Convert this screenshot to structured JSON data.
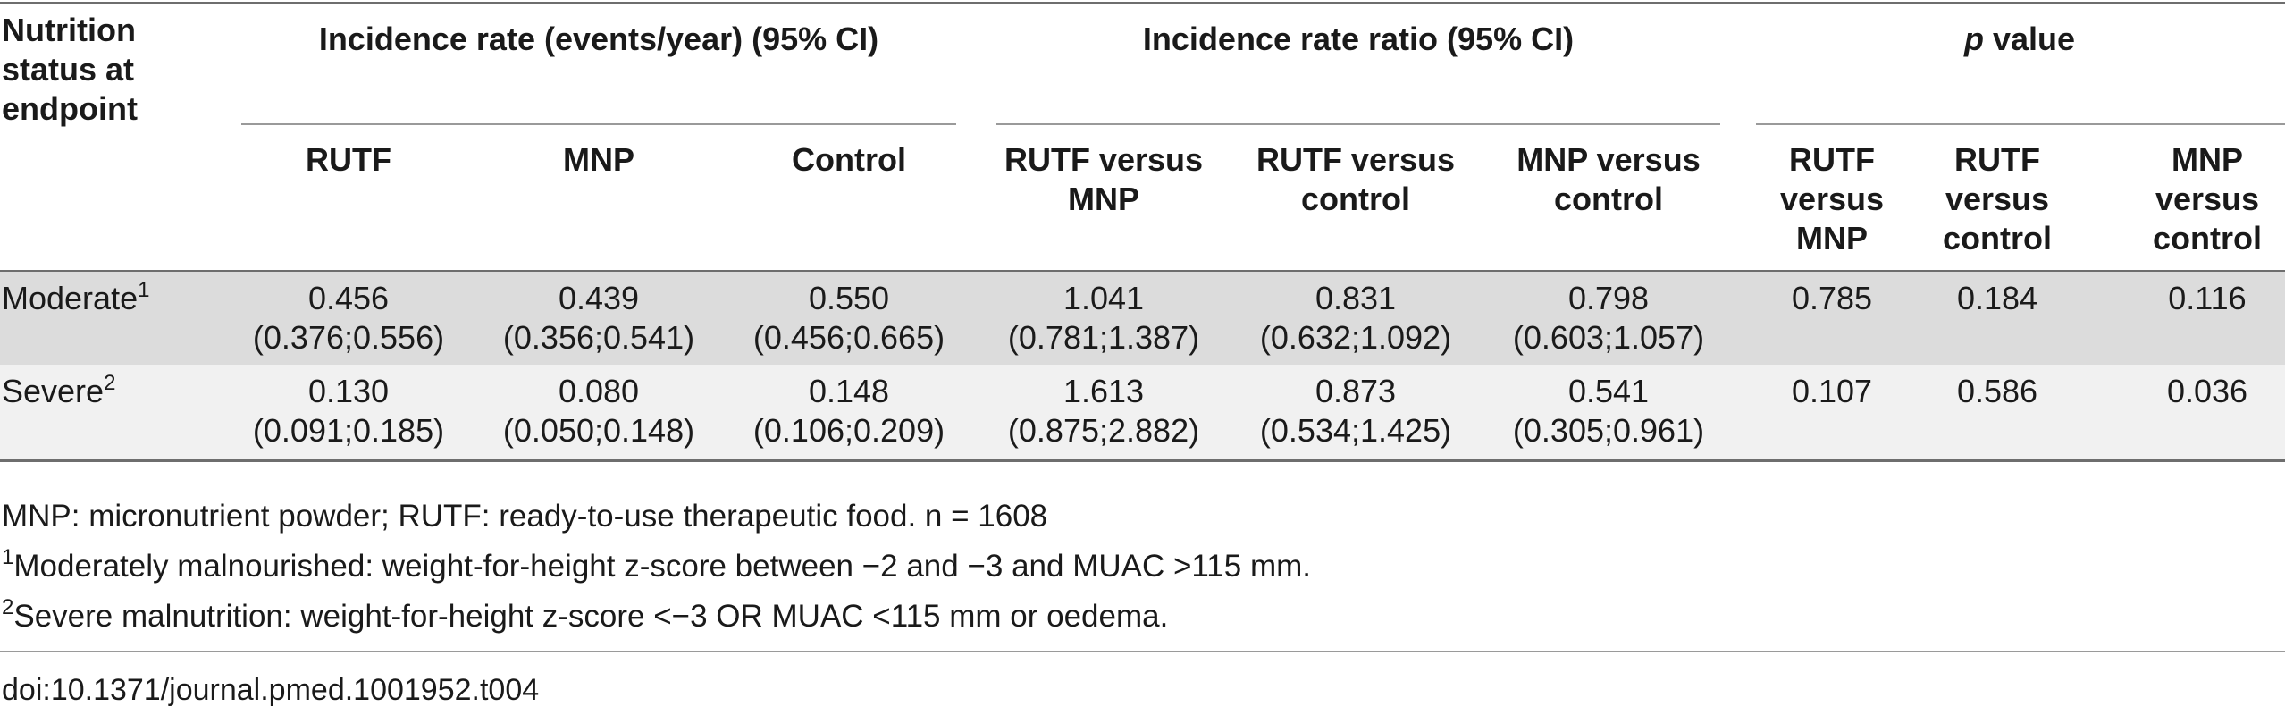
{
  "table": {
    "row_header_label": "Nutrition status at endpoint",
    "groups": {
      "incidence_rate": "Incidence rate (events/year) (95% CI)",
      "incidence_rate_ratio": "Incidence rate ratio (95% CI)",
      "p_value_italic": "p",
      "p_value_rest": " value"
    },
    "columns": [
      "RUTF",
      "MNP",
      "Control",
      "RUTF versus MNP",
      "RUTF versus control",
      "MNP versus control",
      "RUTF versus MNP",
      "RUTF versus control",
      "MNP versus control"
    ],
    "rows": [
      {
        "label": "Moderate",
        "sup": "1",
        "cells": [
          {
            "value": "0.456",
            "ci": "(0.376;0.556)"
          },
          {
            "value": "0.439",
            "ci": "(0.356;0.541)"
          },
          {
            "value": "0.550",
            "ci": "(0.456;0.665)"
          },
          {
            "value": "1.041",
            "ci": "(0.781;1.387)"
          },
          {
            "value": "0.831",
            "ci": "(0.632;1.092)"
          },
          {
            "value": "0.798",
            "ci": "(0.603;1.057)"
          },
          {
            "value": "0.785",
            "ci": ""
          },
          {
            "value": "0.184",
            "ci": ""
          },
          {
            "value": "0.116",
            "ci": ""
          }
        ]
      },
      {
        "label": "Severe",
        "sup": "2",
        "cells": [
          {
            "value": "0.130",
            "ci": "(0.091;0.185)"
          },
          {
            "value": "0.080",
            "ci": "(0.050;0.148)"
          },
          {
            "value": "0.148",
            "ci": "(0.106;0.209)"
          },
          {
            "value": "1.613",
            "ci": "(0.875;2.882)"
          },
          {
            "value": "0.873",
            "ci": "(0.534;1.425)"
          },
          {
            "value": "0.541",
            "ci": "(0.305;0.961)"
          },
          {
            "value": "0.107",
            "ci": ""
          },
          {
            "value": "0.586",
            "ci": ""
          },
          {
            "value": "0.036",
            "ci": ""
          }
        ]
      }
    ]
  },
  "footnotes": {
    "abbreviations": "MNP: micronutrient powder; RUTF: ready-to-use therapeutic food. n = 1608",
    "note1_sup": "1",
    "note1_text": "Moderately malnourished: weight-for-height z-score between −2 and −3 and MUAC >115 mm.",
    "note2_sup": "2",
    "note2_text": "Severe malnutrition: weight-for-height z-score <−3 OR MUAC <115 mm or oedema."
  },
  "doi": "doi:10.1371/journal.pmed.1001952.t004",
  "colors": {
    "moderate_row_bg": "#dcdcdc",
    "severe_row_bg": "#f1f1f1",
    "rule": "#6e6e6e"
  }
}
